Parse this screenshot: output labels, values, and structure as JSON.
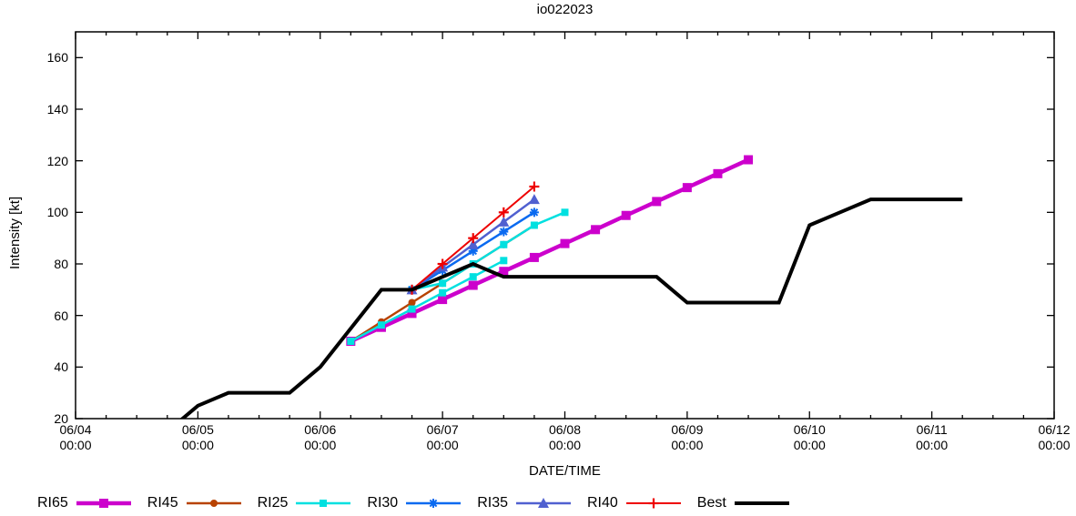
{
  "chart_data": {
    "type": "line",
    "title": "io022023",
    "xlabel": "DATE/TIME",
    "ylabel": "Intensity [kt]",
    "legend_position": "bottom",
    "x_axis": {
      "start": "06/04 00:00",
      "end": "06/12 00:00",
      "major_tick_hours": 24,
      "minor_tick_hours": 6,
      "tick_labels": [
        {
          "date": "06/04",
          "time": "00:00"
        },
        {
          "date": "06/05",
          "time": "00:00"
        },
        {
          "date": "06/06",
          "time": "00:00"
        },
        {
          "date": "06/07",
          "time": "00:00"
        },
        {
          "date": "06/08",
          "time": "00:00"
        },
        {
          "date": "06/09",
          "time": "00:00"
        },
        {
          "date": "06/10",
          "time": "00:00"
        },
        {
          "date": "06/11",
          "time": "00:00"
        },
        {
          "date": "06/12",
          "time": "00:00"
        }
      ]
    },
    "y_axis": {
      "min": 20,
      "max": 170,
      "unit": "kt",
      "ticks": [
        20,
        40,
        60,
        80,
        100,
        120,
        140,
        160
      ]
    },
    "series": [
      {
        "name": "RI65",
        "color": "#cc00cc",
        "marker": "square",
        "marker_size": 10,
        "line_width": 4.5,
        "segments": [
          [
            [
              "06/06 06:00",
              50
            ],
            [
              "06/06 12:00",
              55.4
            ],
            [
              "06/06 18:00",
              60.8
            ],
            [
              "06/07 00:00",
              66.2
            ],
            [
              "06/07 06:00",
              71.7
            ],
            [
              "06/07 12:00",
              77.1
            ],
            [
              "06/07 18:00",
              82.5
            ],
            [
              "06/08 00:00",
              87.9
            ],
            [
              "06/08 06:00",
              93.3
            ],
            [
              "06/08 12:00",
              98.8
            ],
            [
              "06/08 18:00",
              104.2
            ],
            [
              "06/09 00:00",
              109.6
            ],
            [
              "06/09 06:00",
              115
            ],
            [
              "06/09 12:00",
              120.4
            ]
          ]
        ]
      },
      {
        "name": "RI45",
        "color": "#b84200",
        "marker": "circle",
        "marker_size": 8,
        "line_width": 2.5,
        "segments": [
          [
            [
              "06/06 06:00",
              50
            ],
            [
              "06/06 12:00",
              57.5
            ],
            [
              "06/06 18:00",
              65
            ],
            [
              "06/07 00:00",
              72.5
            ],
            [
              "06/07 06:00",
              80
            ],
            [
              "06/07 12:00",
              87.5
            ],
            [
              "06/07 18:00",
              95
            ]
          ]
        ]
      },
      {
        "name": "RI25",
        "color": "#00e0e0",
        "marker": "square",
        "marker_size": 8,
        "line_width": 2.5,
        "segments": [
          [
            [
              "06/06 06:00",
              50
            ],
            [
              "06/06 12:00",
              56.3
            ],
            [
              "06/06 18:00",
              62.5
            ],
            [
              "06/07 00:00",
              68.8
            ],
            [
              "06/07 06:00",
              75
            ],
            [
              "06/07 12:00",
              81.3
            ]
          ],
          [
            [
              "06/06 18:00",
              70
            ],
            [
              "06/07 00:00",
              72.5
            ],
            [
              "06/07 06:00",
              80
            ],
            [
              "06/07 12:00",
              87.5
            ],
            [
              "06/07 18:00",
              95
            ],
            [
              "06/08 00:00",
              100
            ]
          ]
        ]
      },
      {
        "name": "RI30",
        "color": "#0a6af0",
        "marker": "asterisk",
        "marker_size": 10,
        "line_width": 2.5,
        "segments": [
          [
            [
              "06/06 18:00",
              70
            ],
            [
              "06/07 00:00",
              77.5
            ],
            [
              "06/07 06:00",
              85
            ],
            [
              "06/07 12:00",
              92.5
            ],
            [
              "06/07 18:00",
              100
            ]
          ]
        ]
      },
      {
        "name": "RI35",
        "color": "#5060d0",
        "marker": "triangle",
        "marker_size": 10,
        "line_width": 2.5,
        "segments": [
          [
            [
              "06/06 18:00",
              70
            ],
            [
              "06/07 00:00",
              78.8
            ],
            [
              "06/07 06:00",
              87.5
            ],
            [
              "06/07 12:00",
              96.3
            ],
            [
              "06/07 18:00",
              105
            ]
          ]
        ]
      },
      {
        "name": "RI40",
        "color": "#ee0000",
        "marker": "plus",
        "marker_size": 11,
        "line_width": 2,
        "segments": [
          [
            [
              "06/06 18:00",
              70
            ],
            [
              "06/07 00:00",
              80
            ],
            [
              "06/07 06:00",
              90
            ],
            [
              "06/07 12:00",
              100
            ],
            [
              "06/07 18:00",
              110
            ]
          ]
        ]
      },
      {
        "name": "Best",
        "color": "#000000",
        "marker": "none",
        "marker_size": 0,
        "line_width": 4,
        "segments": [
          [
            [
              "06/04 18:00",
              15
            ],
            [
              "06/05 00:00",
              25
            ],
            [
              "06/05 06:00",
              30
            ],
            [
              "06/05 12:00",
              30
            ],
            [
              "06/05 18:00",
              30
            ],
            [
              "06/06 00:00",
              40
            ],
            [
              "06/06 06:00",
              55
            ],
            [
              "06/06 12:00",
              70
            ],
            [
              "06/06 18:00",
              70
            ],
            [
              "06/07 00:00",
              75
            ],
            [
              "06/07 06:00",
              80
            ],
            [
              "06/07 12:00",
              75
            ],
            [
              "06/07 18:00",
              75
            ],
            [
              "06/08 00:00",
              75
            ],
            [
              "06/08 06:00",
              75
            ],
            [
              "06/08 12:00",
              75
            ],
            [
              "06/08 18:00",
              75
            ],
            [
              "06/09 00:00",
              65
            ],
            [
              "06/09 06:00",
              65
            ],
            [
              "06/09 12:00",
              65
            ],
            [
              "06/09 18:00",
              65
            ],
            [
              "06/10 00:00",
              95
            ],
            [
              "06/10 06:00",
              100
            ],
            [
              "06/10 12:00",
              105
            ],
            [
              "06/10 18:00",
              105
            ],
            [
              "06/11 00:00",
              105
            ],
            [
              "06/11 06:00",
              105
            ]
          ]
        ]
      }
    ]
  }
}
